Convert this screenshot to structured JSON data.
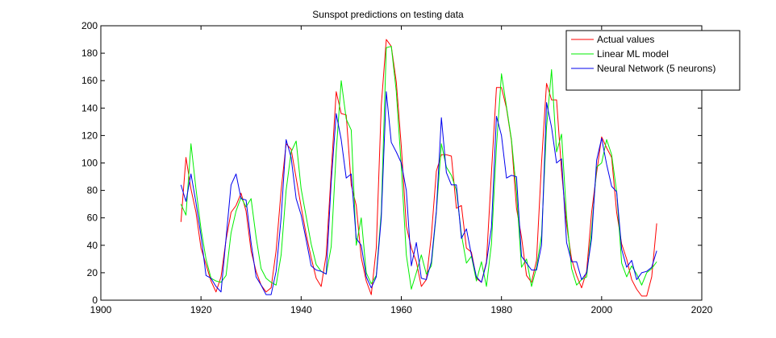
{
  "chart_data": {
    "type": "line",
    "title": "Sunspot predictions on testing data",
    "xlabel": "",
    "ylabel": "",
    "xlim": [
      1900,
      2020
    ],
    "ylim": [
      0,
      200
    ],
    "x_ticks": [
      1900,
      1920,
      1940,
      1960,
      1980,
      2000,
      2020
    ],
    "y_ticks": [
      0,
      20,
      40,
      60,
      80,
      100,
      120,
      140,
      160,
      180,
      200
    ],
    "grid": false,
    "legend_position": "top-right",
    "x": [
      1916,
      1917,
      1918,
      1919,
      1920,
      1921,
      1922,
      1923,
      1924,
      1925,
      1926,
      1927,
      1928,
      1929,
      1930,
      1931,
      1932,
      1933,
      1934,
      1935,
      1936,
      1937,
      1938,
      1939,
      1940,
      1941,
      1942,
      1943,
      1944,
      1945,
      1946,
      1947,
      1948,
      1949,
      1950,
      1951,
      1952,
      1953,
      1954,
      1955,
      1956,
      1957,
      1958,
      1959,
      1960,
      1961,
      1962,
      1963,
      1964,
      1965,
      1966,
      1967,
      1968,
      1969,
      1970,
      1971,
      1972,
      1973,
      1974,
      1975,
      1976,
      1977,
      1978,
      1979,
      1980,
      1981,
      1982,
      1983,
      1984,
      1985,
      1986,
      1987,
      1988,
      1989,
      1990,
      1991,
      1992,
      1993,
      1994,
      1995,
      1996,
      1997,
      1998,
      1999,
      2000,
      2001,
      2002,
      2003,
      2004,
      2005,
      2006,
      2007,
      2008,
      2009,
      2010,
      2011
    ],
    "series": [
      {
        "name": "Actual values",
        "color": "#ff0000",
        "values": [
          57,
          104,
          81,
          64,
          38,
          26,
          14,
          6,
          17,
          44,
          64,
          69,
          78,
          65,
          36,
          21,
          11,
          6,
          9,
          36,
          80,
          114,
          110,
          89,
          68,
          48,
          31,
          16,
          10,
          33,
          93,
          152,
          136,
          135,
          84,
          69,
          31,
          14,
          4,
          38,
          142,
          190,
          185,
          159,
          112,
          54,
          38,
          28,
          10,
          15,
          47,
          94,
          106,
          106,
          105,
          67,
          69,
          38,
          35,
          16,
          13,
          28,
          93,
          155,
          155,
          140,
          116,
          67,
          46,
          18,
          13,
          29,
          100,
          158,
          146,
          146,
          94,
          55,
          30,
          18,
          9,
          21,
          64,
          93,
          119,
          111,
          104,
          64,
          41,
          30,
          15,
          8,
          3,
          3,
          17,
          56
        ]
      },
      {
        "name": "Linear ML model",
        "color": "#00ee00",
        "values": [
          70,
          62,
          114,
          81,
          52,
          30,
          16,
          14,
          13,
          18,
          49,
          65,
          75,
          68,
          74,
          46,
          23,
          16,
          13,
          11,
          33,
          80,
          108,
          116,
          81,
          61,
          41,
          26,
          21,
          19,
          39,
          108,
          160,
          132,
          124,
          40,
          60,
          20,
          12,
          18,
          64,
          184,
          185,
          152,
          97,
          33,
          8,
          20,
          33,
          19,
          25,
          64,
          114,
          97,
          91,
          80,
          48,
          27,
          32,
          14,
          28,
          10,
          41,
          112,
          165,
          141,
          117,
          79,
          24,
          30,
          10,
          24,
          47,
          126,
          168,
          108,
          121,
          61,
          23,
          11,
          15,
          17,
          51,
          97,
          100,
          117,
          106,
          79,
          27,
          17,
          25,
          19,
          11,
          20,
          23,
          28
        ]
      },
      {
        "name": "Neural Network (5 neurons)",
        "color": "#0000ee",
        "values": [
          84,
          72,
          92,
          71,
          47,
          18,
          16,
          10,
          6,
          45,
          84,
          92,
          74,
          73,
          42,
          17,
          11,
          4,
          4,
          21,
          60,
          117,
          104,
          74,
          62,
          44,
          25,
          22,
          21,
          19,
          86,
          136,
          117,
          89,
          92,
          45,
          40,
          17,
          9,
          17,
          60,
          152,
          115,
          108,
          100,
          80,
          25,
          42,
          16,
          15,
          28,
          65,
          133,
          93,
          84,
          84,
          45,
          52,
          33,
          17,
          13,
          27,
          53,
          134,
          120,
          89,
          91,
          90,
          32,
          27,
          22,
          22,
          40,
          144,
          126,
          100,
          103,
          42,
          28,
          28,
          15,
          20,
          45,
          102,
          118,
          99,
          83,
          79,
          37,
          24,
          29,
          15,
          20,
          21,
          24,
          36
        ]
      }
    ]
  }
}
